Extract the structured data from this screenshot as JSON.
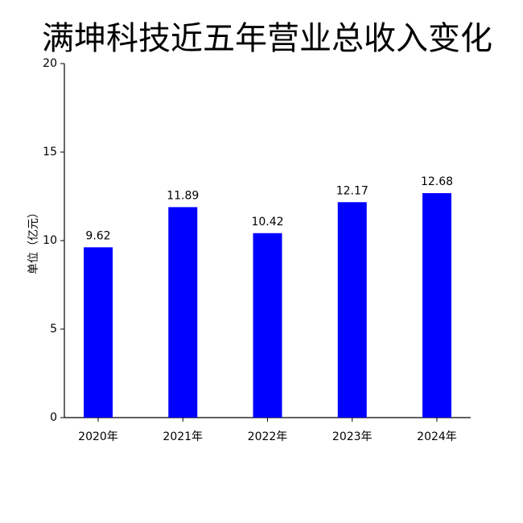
{
  "chart_data": {
    "type": "bar",
    "title": "满坤科技近五年营业总收入变化",
    "y_label": "单位（亿元）",
    "categories": [
      "2020年",
      "2021年",
      "2022年",
      "2023年",
      "2024年"
    ],
    "values": [
      9.62,
      11.89,
      10.42,
      12.17,
      12.68
    ],
    "color": "#0000ff",
    "ylim": [
      0,
      20
    ],
    "yticks": [
      0,
      5,
      10,
      15,
      20
    ],
    "grid": false
  }
}
